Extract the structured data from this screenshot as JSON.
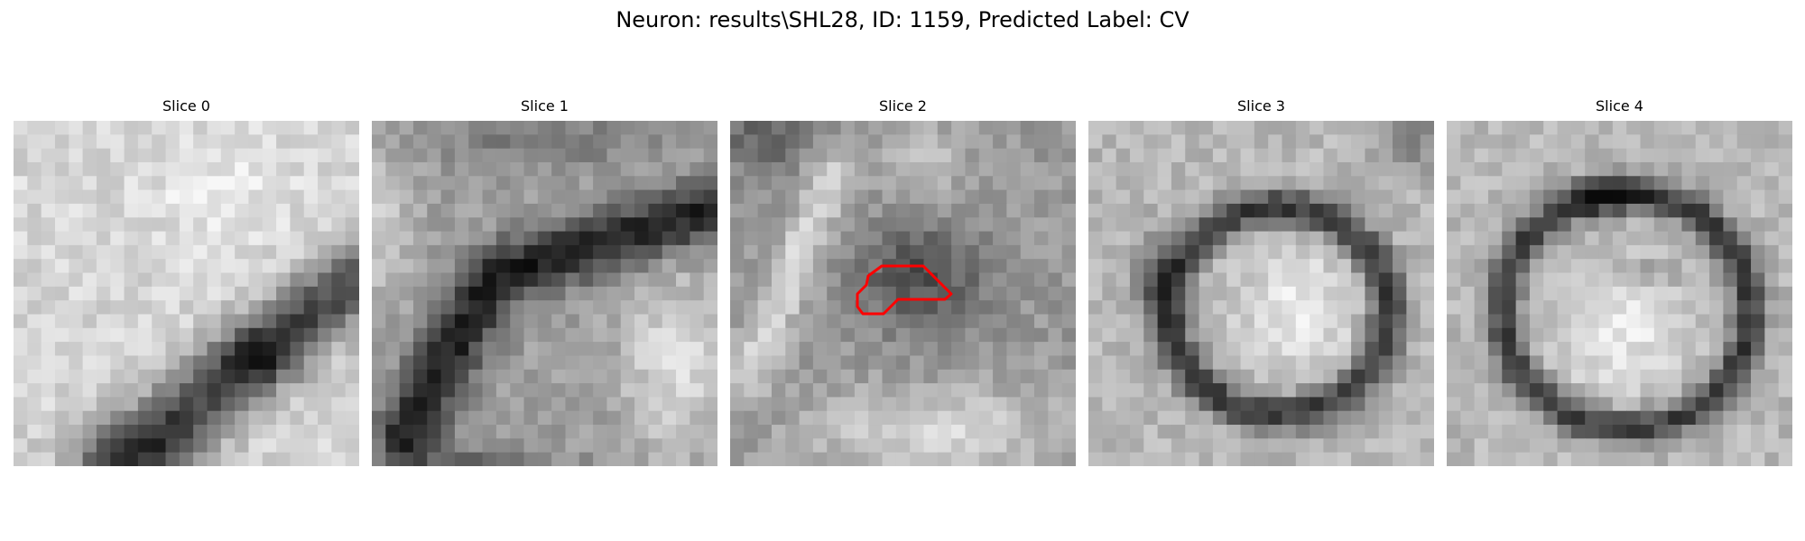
{
  "title": "Neuron: results\\SHL28, ID: 1159, Predicted Label: CV",
  "slices": [
    {
      "label": "Slice 0",
      "image": "grayscale-em-slice"
    },
    {
      "label": "Slice 1",
      "image": "grayscale-em-slice"
    },
    {
      "label": "Slice 2",
      "image": "grayscale-em-slice",
      "overlay": "red-contour-outline",
      "overlay_color": "#ff0000"
    },
    {
      "label": "Slice 3",
      "image": "grayscale-em-slice"
    },
    {
      "label": "Slice 4",
      "image": "grayscale-em-slice"
    }
  ]
}
